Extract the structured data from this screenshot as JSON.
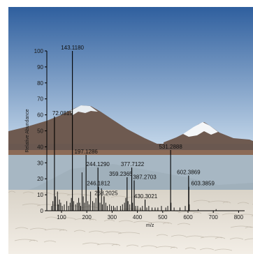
{
  "colors": {
    "sky_top": "#2f5f9e",
    "sky_bottom": "#cfe0ef",
    "mountain": "#6e5a50",
    "snow": "#f4f6f8",
    "lake_water": "#a7b7c3",
    "salt_crust": "#efe9df",
    "stick": "#000000"
  },
  "chart_data": {
    "type": "bar",
    "subtype": "mass-spectrum-sticks",
    "title": "",
    "xlabel": "m/z",
    "ylabel": "Relative Abundance",
    "xlim": [
      50,
      820
    ],
    "ylim": [
      0,
      100
    ],
    "x_ticks": [
      100,
      200,
      300,
      400,
      500,
      600,
      700,
      800
    ],
    "y_ticks": [
      0,
      10,
      20,
      30,
      40,
      50,
      60,
      70,
      80,
      90,
      100
    ],
    "grid": false,
    "labeled_peaks": [
      {
        "x": 72.0815,
        "y": 59,
        "label": "72.0815"
      },
      {
        "x": 143.118,
        "y": 100,
        "label": "143.1180"
      },
      {
        "x": 197.1286,
        "y": 35,
        "label": "197.1286"
      },
      {
        "x": 244.129,
        "y": 27,
        "label": "244.1290"
      },
      {
        "x": 246.1812,
        "y": 15,
        "label": "246.1812"
      },
      {
        "x": 268.2025,
        "y": 9,
        "label": "268.2025"
      },
      {
        "x": 359.2365,
        "y": 21,
        "label": "359.2365"
      },
      {
        "x": 377.7122,
        "y": 27,
        "label": "377.7122"
      },
      {
        "x": 387.2703,
        "y": 19,
        "label": "387.2703"
      },
      {
        "x": 430.3021,
        "y": 7,
        "label": "430.3021"
      },
      {
        "x": 531.2888,
        "y": 38,
        "label": "531.2888"
      },
      {
        "x": 602.3869,
        "y": 22,
        "label": "602.3869"
      },
      {
        "x": 603.3859,
        "y": 15,
        "label": "603.3859"
      }
    ],
    "minor_peaks": [
      {
        "x": 61,
        "y": 3
      },
      {
        "x": 66,
        "y": 6
      },
      {
        "x": 76,
        "y": 9
      },
      {
        "x": 84,
        "y": 12
      },
      {
        "x": 87,
        "y": 4
      },
      {
        "x": 92,
        "y": 7
      },
      {
        "x": 97,
        "y": 5
      },
      {
        "x": 103,
        "y": 3
      },
      {
        "x": 111,
        "y": 4
      },
      {
        "x": 121,
        "y": 6
      },
      {
        "x": 128,
        "y": 3
      },
      {
        "x": 134,
        "y": 5
      },
      {
        "x": 139,
        "y": 8
      },
      {
        "x": 148,
        "y": 6
      },
      {
        "x": 156,
        "y": 4
      },
      {
        "x": 162,
        "y": 5
      },
      {
        "x": 168,
        "y": 8
      },
      {
        "x": 172,
        "y": 5
      },
      {
        "x": 176,
        "y": 3
      },
      {
        "x": 181,
        "y": 24
      },
      {
        "x": 186,
        "y": 9
      },
      {
        "x": 191,
        "y": 5
      },
      {
        "x": 204,
        "y": 6
      },
      {
        "x": 209,
        "y": 4
      },
      {
        "x": 215,
        "y": 12
      },
      {
        "x": 223,
        "y": 6
      },
      {
        "x": 229,
        "y": 5
      },
      {
        "x": 236,
        "y": 8
      },
      {
        "x": 252,
        "y": 5
      },
      {
        "x": 258,
        "y": 14
      },
      {
        "x": 262,
        "y": 4
      },
      {
        "x": 275,
        "y": 5
      },
      {
        "x": 281,
        "y": 3
      },
      {
        "x": 290,
        "y": 4
      },
      {
        "x": 298,
        "y": 3
      },
      {
        "x": 306,
        "y": 3
      },
      {
        "x": 312,
        "y": 2
      },
      {
        "x": 320,
        "y": 3
      },
      {
        "x": 333,
        "y": 3
      },
      {
        "x": 341,
        "y": 4
      },
      {
        "x": 349,
        "y": 5
      },
      {
        "x": 354,
        "y": 8
      },
      {
        "x": 363,
        "y": 6
      },
      {
        "x": 370,
        "y": 4
      },
      {
        "x": 381,
        "y": 5
      },
      {
        "x": 393,
        "y": 3
      },
      {
        "x": 401,
        "y": 3
      },
      {
        "x": 412,
        "y": 2
      },
      {
        "x": 420,
        "y": 3
      },
      {
        "x": 437,
        "y": 2
      },
      {
        "x": 445,
        "y": 3
      },
      {
        "x": 458,
        "y": 2
      },
      {
        "x": 470,
        "y": 2
      },
      {
        "x": 481,
        "y": 2
      },
      {
        "x": 495,
        "y": 3
      },
      {
        "x": 512,
        "y": 2
      },
      {
        "x": 520,
        "y": 3
      },
      {
        "x": 533,
        "y": 5
      },
      {
        "x": 545,
        "y": 2
      },
      {
        "x": 568,
        "y": 2
      },
      {
        "x": 589,
        "y": 3
      },
      {
        "x": 605,
        "y": 4
      },
      {
        "x": 640,
        "y": 1
      },
      {
        "x": 711,
        "y": 1
      }
    ]
  }
}
